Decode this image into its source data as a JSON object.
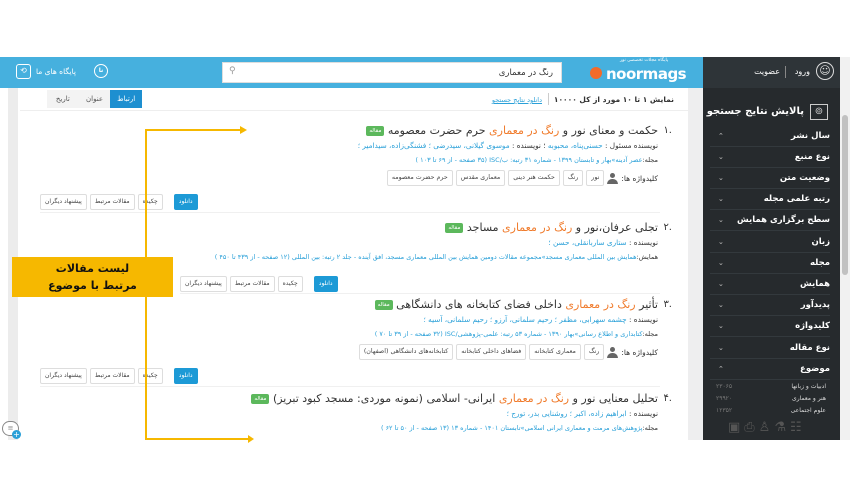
{
  "header": {
    "site_links": "پایگاه های ما",
    "search_value": "رنگ در معماری",
    "logo": "noormags",
    "logo_tagline": "پایگاه مجلات تخصصی نور",
    "login": "ورود",
    "register": "عضویت"
  },
  "sidebar": {
    "title": "پالایش نتایج جستجو",
    "facets": [
      {
        "label": "سال نشر",
        "expanded": true
      },
      {
        "label": "نوع منبع"
      },
      {
        "label": "وضعیت متن"
      },
      {
        "label": "رتبه علمی مجله"
      },
      {
        "label": "سطح برگزاری همایش"
      },
      {
        "label": "زبان"
      },
      {
        "label": "مجله"
      },
      {
        "label": "همایش"
      },
      {
        "label": "پدیدآور"
      },
      {
        "label": "کلیدواژه"
      },
      {
        "label": "نوع مقاله"
      },
      {
        "label": "موضوع",
        "expanded": true
      }
    ],
    "subjects": [
      {
        "label": "ادبیات و زبانها",
        "count": "۲۳۰۶۵"
      },
      {
        "label": "هنر و معماری",
        "count": "۲۹۹۲۰"
      },
      {
        "label": "علوم اجتماعی",
        "count": "۱۲۳۵۲"
      }
    ]
  },
  "results_bar": {
    "summary": "نمایش ۱ تا ۱۰ مورد از کل ۱۰۰۰۰",
    "download": "دانلود نتایج جستجو",
    "sort_tabs": [
      "ارتباط",
      "عنوان",
      "تاریخ"
    ],
    "active_tab": "ارتباط"
  },
  "common": {
    "badge": "مقاله",
    "author_label": "نویسنده :",
    "lead_author_label": "نویسنده مسئول :",
    "keywords_label": "کلیدواژه ها:",
    "journal_label": "مجله:",
    "conference_label": "همایش:",
    "download": "دانلود",
    "abstract": "چکیده",
    "related": "مقالات مرتبط",
    "suggest": "پیشنهاد دیگران"
  },
  "results": [
    {
      "num": "۱.",
      "pre": "حکمت و معنای نور و ",
      "hl": "رنگ در معماری",
      "post": " حرم حضرت معصومه",
      "lead_author": "حسنی‌پناه، محبوبه",
      "authors": "موسوی گیلانی، سیدرضی ؛ فشنگی‌زاده، سیدامیر ؛",
      "source": "عصر آدینه»بهار و تابستان ۱۳۹۹ - شماره ۳۱ رتبه: ب/ISC (۳۵ صفحه - از ۶۹ تا ۱۰۳ )",
      "keywords": [
        "نور",
        "رنگ",
        "حکمت هنر دینی",
        "معماری مقدس",
        "حرم حضرت معصومه"
      ]
    },
    {
      "num": "۲.",
      "pre": "تجلی عرفان،نور و ",
      "hl": "رنگ در معماری",
      "post": " مساجد",
      "authors": "ستاری ساربانقلی، حسن ؛",
      "source": "همایش بین المللی معماری مسجد»مجموعه مقالات دومین همایش بین المللی معماری مسجد، افق آینده - جلد ۲ رتبه: بین المللی (۱۲ صفحه - از ۴۳۹ تا ۴۵۰ )"
    },
    {
      "num": "۳.",
      "pre": "تأثیر ",
      "hl": "رنگ در معماری",
      "post": " داخلی فضای کتابخانه های دانشگاهی",
      "authors": "چشمه سهرابی، مظفر ؛ رحیم سلمانی، آرزو ؛ رحیم سلمانی، آسیه ؛",
      "source": "کتابداری و اطلاع رسانی»بهار ۱۳۹۰ - شماره ۵۳ رتبه: علمی-پژوهشی/ISC (۳۲ صفحه - از ۳۹ تا ۷۰ )",
      "keywords": [
        "رنگ",
        "معماری کتابخانه",
        "فضاهای داخلی کتابخانه",
        "کتابخانه‌های دانشگاهی (اصفهان)"
      ]
    },
    {
      "num": "۴.",
      "pre": "تحلیل معنایی نور و ",
      "hl": "رنگ در معماری",
      "post": " ایرانی- اسلامی (نمونه موردی: مسجد کبود تبریز)",
      "authors": "ابراهیم زاده، اکبر ؛ روشنایی بدر، تورج ؛",
      "source": "پژوهش‌های مرمت و معماری ایرانی اسلامی»تابستان ۱۴۰۱ - شماره ۱۳ (۱۳ صفحه - از ۵۰ تا ۶۲ )"
    }
  ],
  "annotation": {
    "line1": "لیست مقالات",
    "line2": "مرتبط با موضوع",
    "color": "#f6b800"
  },
  "colors": {
    "header": "#46b0de",
    "sidebar": "#262a2d",
    "highlight": "#f07a2a",
    "link": "#2aa0d8",
    "primary": "#1d9ad6",
    "badge": "#5cb85c"
  }
}
